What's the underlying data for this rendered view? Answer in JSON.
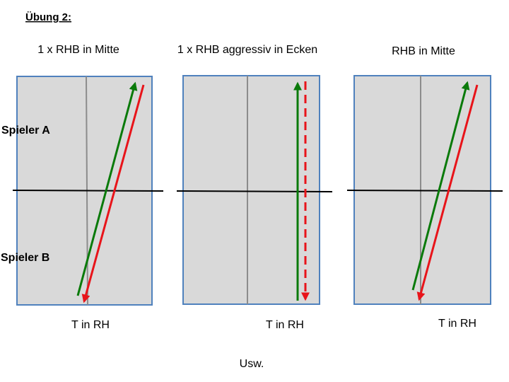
{
  "header": {
    "title": "Übung 2:"
  },
  "panels": [
    {
      "title": "1 x RHB in Mitte",
      "caption": "T in RH"
    },
    {
      "title": "1 x RHB aggressiv in Ecken",
      "caption": "T in RH"
    },
    {
      "title": "RHB in Mitte",
      "caption": "T in RH"
    }
  ],
  "players": [
    "Spieler A",
    "Spieler B"
  ],
  "footer": "Usw."
}
